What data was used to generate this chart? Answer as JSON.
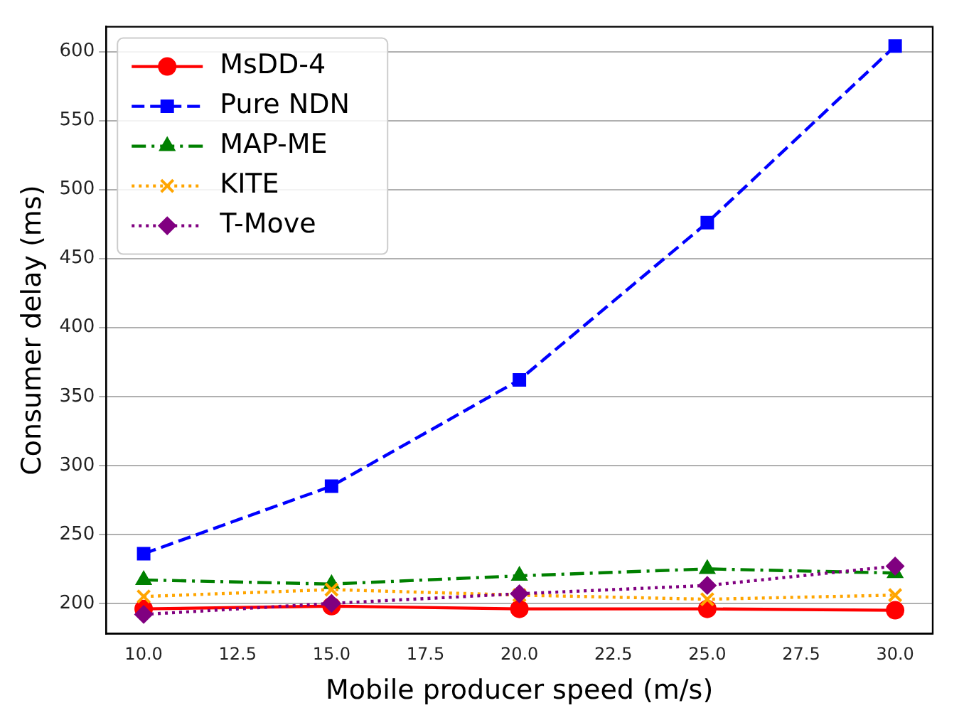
{
  "chart_data": {
    "type": "line",
    "xlabel": "Mobile producer speed (m/s)",
    "ylabel": "Consumer delay (ms)",
    "x": [
      10,
      15,
      20,
      25,
      30
    ],
    "xlim": [
      9,
      31
    ],
    "xticks": [
      {
        "value": 10,
        "label": "10.0"
      },
      {
        "value": 12.5,
        "label": "12.5"
      },
      {
        "value": 15,
        "label": "15.0"
      },
      {
        "value": 17.5,
        "label": "17.5"
      },
      {
        "value": 20,
        "label": "20.0"
      },
      {
        "value": 22.5,
        "label": "22.5"
      },
      {
        "value": 25,
        "label": "25.0"
      },
      {
        "value": 27.5,
        "label": "27.5"
      },
      {
        "value": 30,
        "label": "30.0"
      }
    ],
    "ylim": [
      178,
      618
    ],
    "yticks": [
      200,
      250,
      300,
      350,
      400,
      450,
      500,
      550,
      600
    ],
    "grid": "y",
    "legend": "top left",
    "series": [
      {
        "name": "MsDD-4",
        "color": "#ff0000",
        "values": [
          196,
          198,
          196,
          196,
          195
        ],
        "marker": "circle",
        "line_style": "solid"
      },
      {
        "name": "Pure NDN",
        "color": "#0000ff",
        "values": [
          236,
          285,
          362,
          476,
          604
        ],
        "marker": "square",
        "line_style": "dashed"
      },
      {
        "name": "MAP-ME",
        "color": "#008000",
        "values": [
          217,
          214,
          220,
          225,
          222
        ],
        "marker": "triangle",
        "line_style": "dashdot"
      },
      {
        "name": "KITE",
        "color": "#ffa500",
        "values": [
          205,
          210,
          206,
          203,
          206
        ],
        "marker": "cross",
        "line_style": "dotted"
      },
      {
        "name": "T-Move",
        "color": "#800080",
        "values": [
          192,
          200,
          207,
          213,
          227
        ],
        "marker": "diamond",
        "line_style": "dotted"
      }
    ]
  }
}
